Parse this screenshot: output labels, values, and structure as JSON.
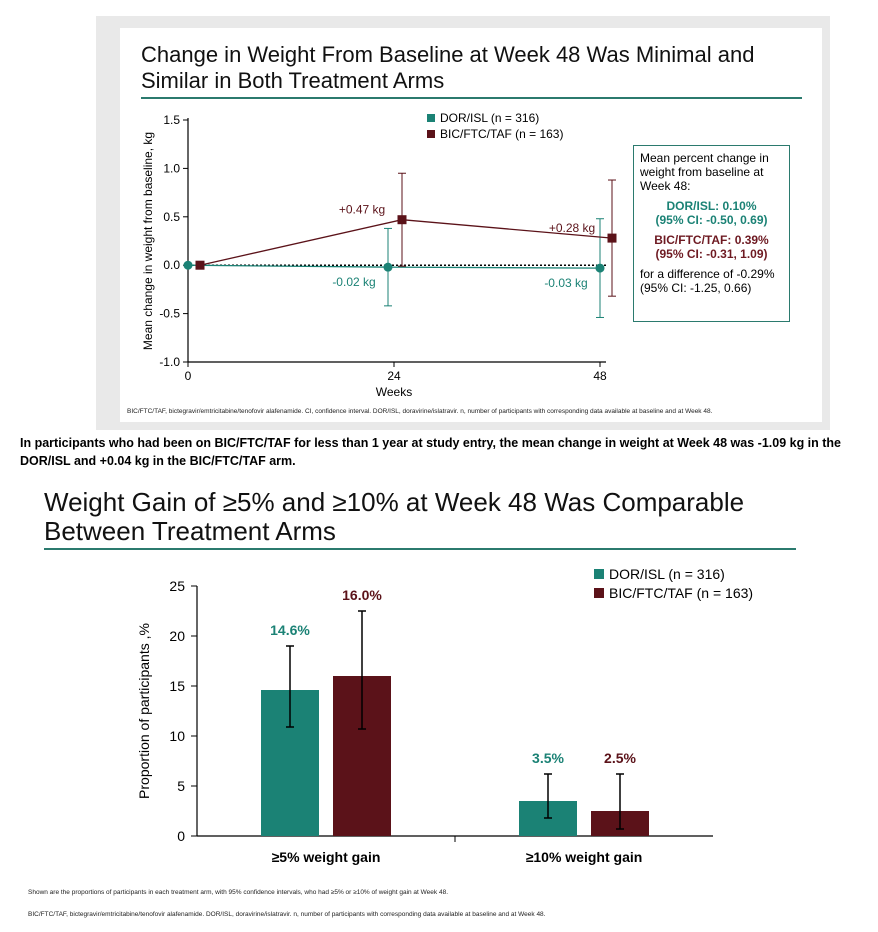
{
  "colors": {
    "dor": "#1b8275",
    "bic": "#5b1219",
    "rule": "#2b7a6e"
  },
  "top_chart": {
    "title": "Change in Weight From Baseline at Week 48 Was Minimal and Similar in Both Treatment Arms",
    "footnote": "BIC/FTC/TAF, bictegravir/emtricitabine/tenofovir alafenamide. CI, confidence interval. DOR/ISL, doravirine/islatravir. n, number of participants with corresponding data available at baseline and at Week 48.",
    "box": {
      "intro": "Mean percent change in weight from baseline at Week 48:",
      "dor_line1": "DOR/ISL: 0.10%",
      "dor_line2": "(95% CI: -0.50, 0.69)",
      "bic_line1": "BIC/FTC/TAF: 0.39%",
      "bic_line2": "(95% CI: -0.31, 1.09)",
      "diff": "for a difference of -0.29% (95% CI: -1.25, 0.66)"
    }
  },
  "note": "In participants who had been on BIC/FTC/TAF for less than 1 year at study entry, the mean change in weight at Week 48 was -1.09 kg in the DOR/ISL and +0.04 kg in the BIC/FTC/TAF arm.",
  "bottom_chart": {
    "title": "Weight Gain of ≥5% and ≥10% at Week 48 Was Comparable Between Treatment Arms",
    "footnote1": "Shown are the proportions of participants in each treatment arm, with 95% confidence intervals, who had ≥5% or ≥10% of weight gain at Week 48.",
    "footnote2": "BIC/FTC/TAF, bictegravir/emtricitabine/tenofovir alafenamide. DOR/ISL, doravirine/islatravir. n, number of participants with corresponding data available at baseline and at Week 48."
  },
  "chart_data": [
    {
      "type": "line",
      "title": "Change in Weight From Baseline at Week 48 Was Minimal and Similar in Both Treatment Arms",
      "xlabel": "Weeks",
      "ylabel": "Mean change in weight from baseline, kg",
      "x_ticks": [
        "0",
        "24",
        "48"
      ],
      "y_ticks": [
        "1.5",
        "1.0",
        "0.5",
        "0.0",
        "-0.5",
        "-1.0"
      ],
      "xlim": [
        0,
        48
      ],
      "ylim": [
        -1.0,
        1.5
      ],
      "reference_line": 0,
      "legend_position": "top",
      "series": [
        {
          "name": "DOR/ISL (n = 316)",
          "x": [
            0,
            24,
            48
          ],
          "values": [
            0,
            -0.02,
            -0.03
          ],
          "ci_low": [
            null,
            -0.42,
            -0.54
          ],
          "ci_high": [
            null,
            0.38,
            0.48
          ],
          "labels": [
            "",
            "-0.02 kg",
            "-0.03 kg"
          ]
        },
        {
          "name": "BIC/FTC/TAF (n = 163)",
          "x": [
            0,
            24,
            48
          ],
          "values": [
            0,
            0.47,
            0.28
          ],
          "ci_low": [
            null,
            -0.01,
            -0.32
          ],
          "ci_high": [
            null,
            0.95,
            0.88
          ],
          "labels": [
            "",
            "+0.47 kg",
            "+0.28 kg"
          ]
        }
      ]
    },
    {
      "type": "bar",
      "title": "Weight Gain of ≥5% and ≥10% at Week 48 Was Comparable Between Treatment Arms",
      "xlabel": "",
      "ylabel": "Proportion of participants ,%",
      "categories": [
        "≥5% weight gain",
        "≥10% weight gain"
      ],
      "y_ticks": [
        "25",
        "20",
        "15",
        "10",
        "5",
        "0"
      ],
      "ylim": [
        0,
        25
      ],
      "legend_position": "top-right",
      "series": [
        {
          "name": "DOR/ISL (n = 316)",
          "values": [
            14.6,
            3.5
          ],
          "ci_low": [
            10.9,
            1.8
          ],
          "ci_high": [
            19.0,
            6.2
          ],
          "labels": [
            "14.6%",
            "3.5%"
          ]
        },
        {
          "name": "BIC/FTC/TAF (n = 163)",
          "values": [
            16.0,
            2.5
          ],
          "ci_low": [
            10.7,
            0.7
          ],
          "ci_high": [
            22.5,
            6.2
          ],
          "labels": [
            "16.0%",
            "2.5%"
          ]
        }
      ]
    }
  ]
}
